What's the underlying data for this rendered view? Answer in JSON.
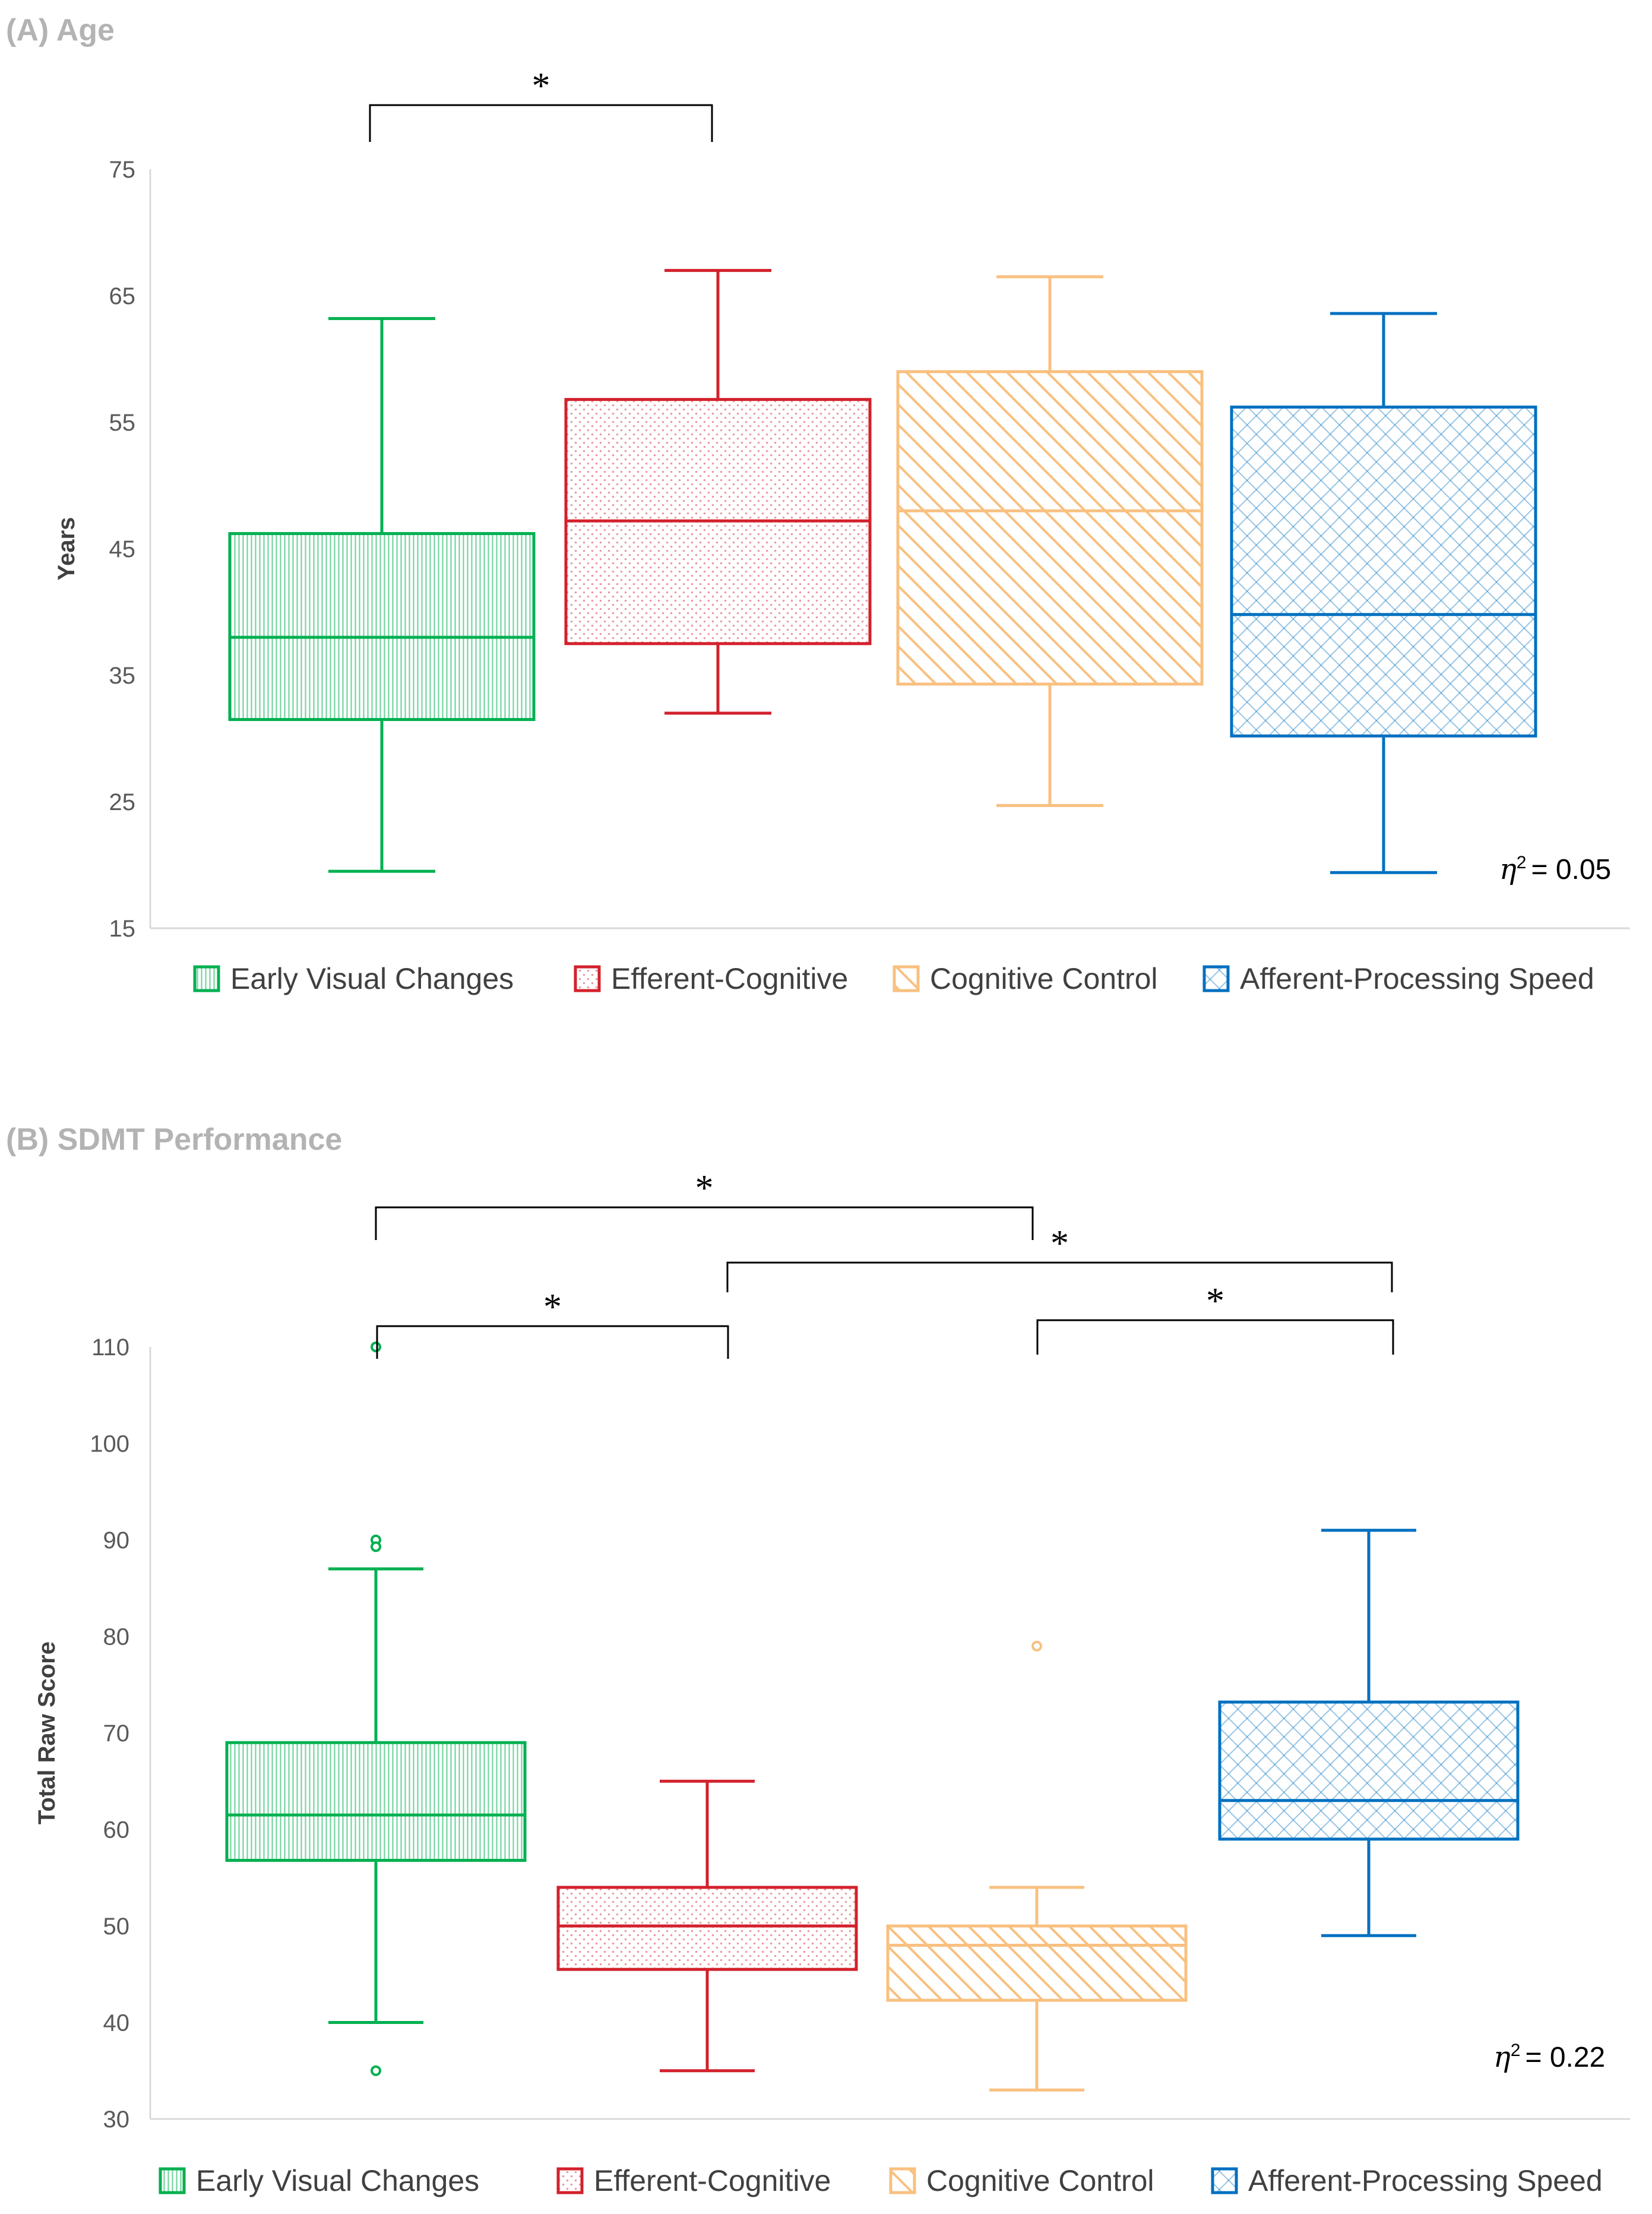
{
  "colors": {
    "green": "#00b050",
    "red": "#d3212c",
    "orange": "#f9c080",
    "blue": "#0070c0",
    "bracket": "#000000"
  },
  "legend_icons": [
    "vertical-stripes-icon",
    "dots-icon",
    "diagonal-stripes-icon",
    "crosshatch-icon"
  ],
  "chart_data": [
    {
      "type": "box",
      "title": "(A) Age",
      "ylabel": "Years",
      "xlabel": "",
      "ylim": [
        15,
        75
      ],
      "yticks": [
        15,
        25,
        35,
        45,
        55,
        65,
        75
      ],
      "effect_size": "= 0.05",
      "effect_symbol": "η",
      "effect_sup": "2",
      "legend": [
        "Early Visual Changes",
        "Efferent-Cognitive",
        "Cognitive Control",
        "Afferent-Processing Speed"
      ],
      "series": [
        {
          "name": "Early Visual Changes",
          "color_key": "green",
          "pattern": "vertical",
          "min": 19.5,
          "q1": 31.5,
          "median": 38,
          "q3": 46.2,
          "max": 63.2,
          "outliers": []
        },
        {
          "name": "Efferent-Cognitive",
          "color_key": "red",
          "pattern": "dots",
          "min": 32,
          "q1": 37.5,
          "median": 47.2,
          "q3": 56.8,
          "max": 67,
          "outliers": []
        },
        {
          "name": "Cognitive Control",
          "color_key": "orange",
          "pattern": "diagonal",
          "min": 24.7,
          "q1": 34.3,
          "median": 48,
          "q3": 59,
          "max": 66.5,
          "outliers": []
        },
        {
          "name": "Afferent-Processing Speed",
          "color_key": "blue",
          "pattern": "crosshatch",
          "min": 19.4,
          "q1": 30.2,
          "median": 39.8,
          "q3": 56.2,
          "max": 63.6,
          "outliers": []
        }
      ],
      "significance": [
        {
          "from": 0,
          "to": 1,
          "label": "*"
        }
      ]
    },
    {
      "type": "box",
      "title": "(B) SDMT Performance",
      "ylabel": "Total Raw Score",
      "xlabel": "",
      "ylim": [
        30,
        110
      ],
      "yticks": [
        30,
        40,
        50,
        60,
        70,
        80,
        90,
        100,
        110
      ],
      "effect_size": "= 0.22",
      "effect_symbol": "η",
      "effect_sup": "2",
      "legend": [
        "Early Visual Changes",
        "Efferent-Cognitive",
        "Cognitive Control",
        "Afferent-Processing Speed"
      ],
      "series": [
        {
          "name": "Early Visual Changes",
          "color_key": "green",
          "pattern": "vertical",
          "min": 40,
          "q1": 56.8,
          "median": 61.5,
          "q3": 69,
          "max": 87,
          "outliers": [
            110,
            90,
            89.3,
            35
          ]
        },
        {
          "name": "Efferent-Cognitive",
          "color_key": "red",
          "pattern": "dots",
          "min": 35,
          "q1": 45.5,
          "median": 50,
          "q3": 54,
          "max": 65,
          "outliers": []
        },
        {
          "name": "Cognitive Control",
          "color_key": "orange",
          "pattern": "diagonal",
          "min": 33,
          "q1": 42.3,
          "median": 48,
          "q3": 50,
          "max": 54,
          "outliers": [
            79
          ]
        },
        {
          "name": "Afferent-Processing Speed",
          "color_key": "blue",
          "pattern": "crosshatch",
          "min": 49,
          "q1": 59,
          "median": 63,
          "q3": 73.2,
          "max": 91,
          "outliers": []
        }
      ],
      "significance": [
        {
          "from": 0,
          "to": 2,
          "label": "*"
        },
        {
          "from": 1,
          "to": 3,
          "label": "*"
        },
        {
          "from": 0,
          "to": 1,
          "label": "*"
        },
        {
          "from": 2,
          "to": 3,
          "label": "*"
        }
      ]
    }
  ]
}
